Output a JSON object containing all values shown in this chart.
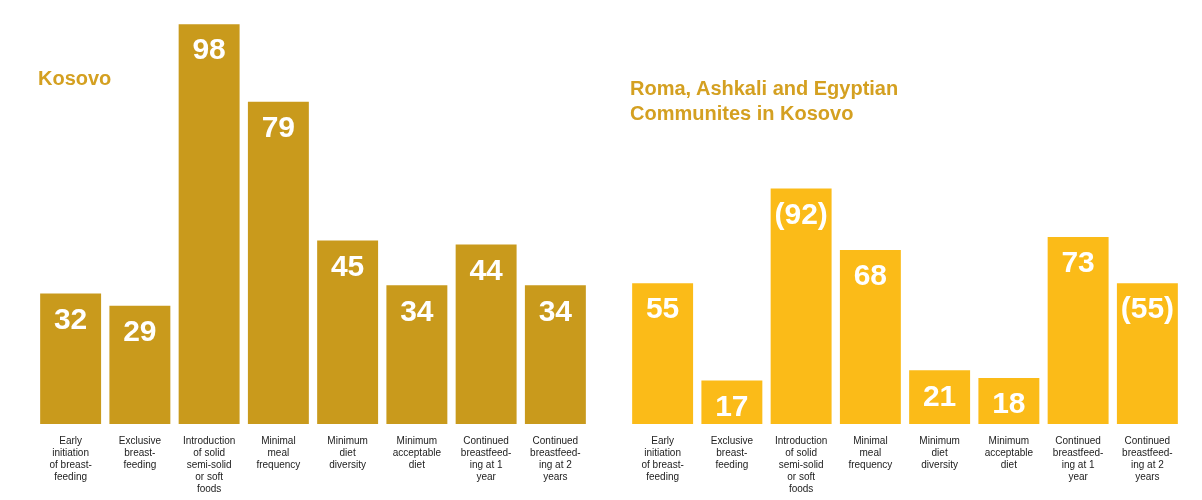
{
  "chart_data": [
    {
      "type": "bar",
      "title": "Kosovo",
      "categories": [
        "Early initiation of breast-feeding",
        "Exclusive breast-feeding",
        "Introduction of solid semi-solid or soft foods",
        "Minimal meal frequency",
        "Minimum diet diversity",
        "Minimum acceptable diet",
        "Continued breastfeed-ing at 1 year",
        "Continued breastfeed-ing at 2 years"
      ],
      "values": [
        32,
        29,
        98,
        79,
        45,
        34,
        44,
        34
      ],
      "color": "#c99a1c",
      "data_labels": true
    },
    {
      "type": "bar",
      "title": "Roma, Ashkali and Egyptian Communites in Kosovo",
      "categories": [
        "Early initiation of breast-feeding",
        "Exclusive breast-feeding",
        "Introduction of solid semi-solid or soft foods",
        "Minimal meal frequency",
        "Minimum diet diversity",
        "Minimum acceptable diet",
        "Continued breastfeed-ing at 1 year",
        "Continued breastfeed-ing at 2 years"
      ],
      "values": [
        55,
        17,
        92,
        68,
        21,
        18,
        73,
        55
      ],
      "color": "#fbbb18",
      "value_labels": [
        "55",
        "17",
        "(92)",
        "68",
        "21",
        "18",
        "73",
        "(55)"
      ]
    }
  ]
}
